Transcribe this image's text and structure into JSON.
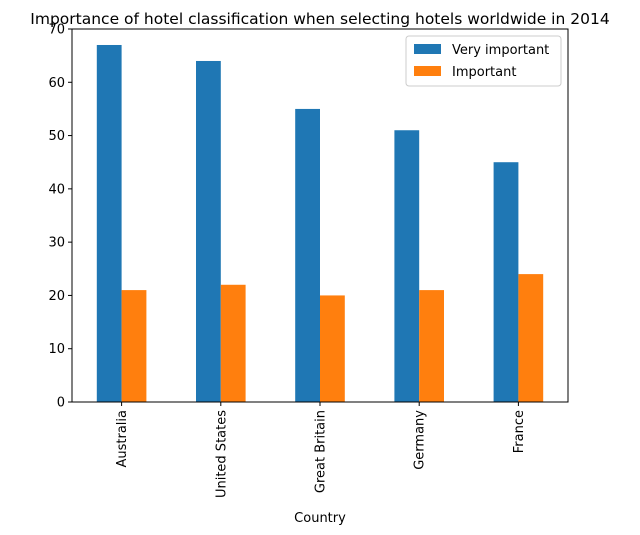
{
  "chart_data": {
    "type": "bar",
    "title": "Importance of hotel classification when selecting hotels worldwide in 2014",
    "xlabel": "Country",
    "ylabel": "",
    "categories": [
      "Australia",
      "United States",
      "Great Britain",
      "Germany",
      "France"
    ],
    "series": [
      {
        "name": "Very important",
        "values": [
          67,
          64,
          55,
          51,
          45
        ],
        "color": "#1f77b4"
      },
      {
        "name": "Important",
        "values": [
          21,
          22,
          20,
          21,
          24
        ],
        "color": "#ff7f0e"
      }
    ],
    "ylim": [
      0,
      70
    ],
    "yticks": [
      "0",
      "10",
      "20",
      "30",
      "40",
      "50",
      "60",
      "70"
    ],
    "grid": false,
    "legend_position": "top-right"
  }
}
